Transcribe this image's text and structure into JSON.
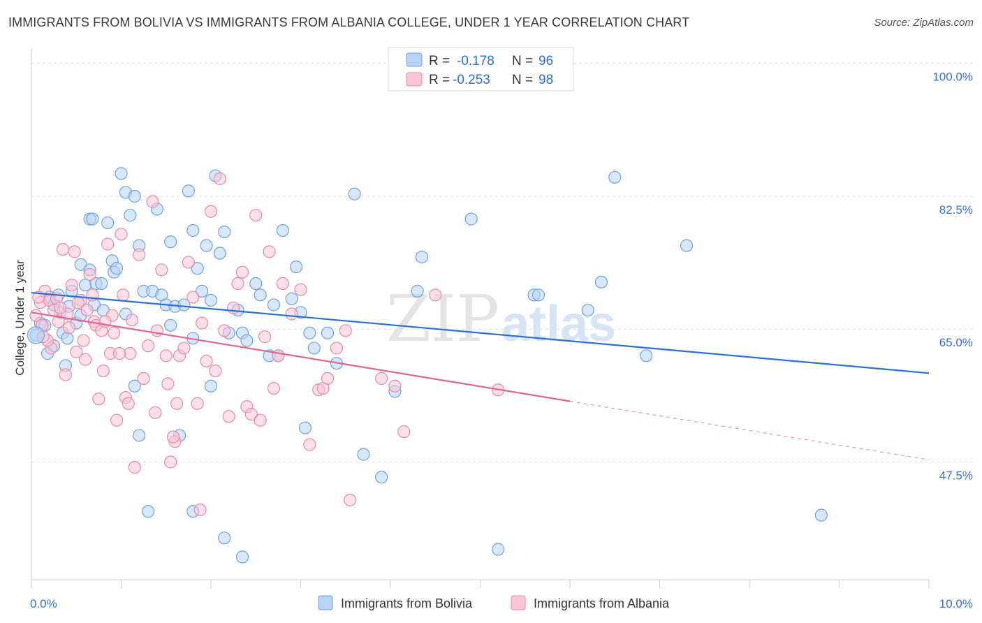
{
  "title": "IMMIGRANTS FROM BOLIVIA VS IMMIGRANTS FROM ALBANIA COLLEGE, UNDER 1 YEAR CORRELATION CHART",
  "source": "Source: ZipAtlas.com",
  "watermark": {
    "zip": "ZIP",
    "atlas": "atlas"
  },
  "colors": {
    "bolivia_fill": "#b8d3f5",
    "bolivia_stroke": "#6fa0e0",
    "bolivia_line": "#2a6fd4",
    "albania_fill": "#f8c6d5",
    "albania_stroke": "#e88aa8",
    "albania_line": "#e06690",
    "tick_label": "#3a6fd1",
    "grid": "#dddddd"
  },
  "legend": {
    "rows": [
      {
        "r_label": "R =",
        "r_value": "-0.178",
        "n_label": "N =",
        "n_value": "96"
      },
      {
        "r_label": "R =",
        "r_value": "-0.253",
        "n_label": "N =",
        "n_value": "98"
      }
    ]
  },
  "bottom_legend": {
    "items": [
      "Immigrants from Bolivia",
      "Immigrants from Albania"
    ]
  },
  "chart_data": {
    "type": "scatter",
    "ylabel": "College, Under 1 year",
    "xlim": [
      0,
      10
    ],
    "ylim": [
      32.0,
      102.0
    ],
    "y_ticks": [
      47.5,
      65.0,
      82.5,
      100.0
    ],
    "y_tick_labels": [
      "47.5%",
      "65.0%",
      "82.5%",
      "100.0%"
    ],
    "x_tick_labels": [
      "0.0%",
      "10.0%"
    ],
    "grid": true,
    "legend_position": "top-center",
    "series": [
      {
        "name": "Immigrants from Bolivia",
        "trend": {
          "x": [
            0.0,
            10.0
          ],
          "y": [
            69.8,
            59.2
          ]
        },
        "points": [
          [
            0.05,
            64.2
          ],
          [
            0.1,
            65.8
          ],
          [
            0.15,
            65.5
          ],
          [
            0.18,
            61.8
          ],
          [
            0.2,
            69.2
          ],
          [
            0.25,
            68.2
          ],
          [
            0.3,
            69.5
          ],
          [
            0.32,
            67.2
          ],
          [
            0.35,
            64.5
          ],
          [
            0.38,
            60.2
          ],
          [
            0.4,
            63.8
          ],
          [
            0.42,
            68.0
          ],
          [
            0.45,
            70.0
          ],
          [
            0.5,
            65.8
          ],
          [
            0.55,
            73.5
          ],
          [
            0.6,
            70.8
          ],
          [
            0.65,
            72.8
          ],
          [
            0.7,
            68.2
          ],
          [
            0.65,
            79.5
          ],
          [
            0.68,
            79.5
          ],
          [
            0.72,
            71.0
          ],
          [
            0.78,
            71.0
          ],
          [
            0.85,
            79.0
          ],
          [
            0.9,
            74.0
          ],
          [
            0.92,
            72.5
          ],
          [
            0.95,
            73.0
          ],
          [
            1.0,
            85.5
          ],
          [
            1.05,
            83.0
          ],
          [
            1.1,
            80.0
          ],
          [
            1.15,
            82.5
          ],
          [
            1.2,
            76.0
          ],
          [
            1.25,
            70.0
          ],
          [
            1.35,
            70.0
          ],
          [
            1.4,
            80.8
          ],
          [
            1.45,
            69.5
          ],
          [
            1.5,
            68.2
          ],
          [
            1.55,
            65.5
          ],
          [
            1.55,
            76.5
          ],
          [
            1.6,
            68.0
          ],
          [
            1.8,
            63.8
          ],
          [
            1.7,
            68.2
          ],
          [
            1.75,
            83.2
          ],
          [
            1.8,
            78.0
          ],
          [
            1.85,
            73.0
          ],
          [
            1.9,
            70.0
          ],
          [
            1.95,
            76.0
          ],
          [
            2.0,
            68.8
          ],
          [
            2.05,
            85.2
          ],
          [
            2.1,
            75.0
          ],
          [
            2.15,
            77.8
          ],
          [
            2.2,
            64.5
          ],
          [
            2.3,
            67.5
          ],
          [
            2.35,
            64.5
          ],
          [
            2.4,
            63.5
          ],
          [
            2.5,
            71.0
          ],
          [
            2.55,
            69.5
          ],
          [
            2.65,
            61.5
          ],
          [
            2.7,
            68.2
          ],
          [
            2.75,
            61.5
          ],
          [
            2.8,
            78.0
          ],
          [
            2.9,
            69.0
          ],
          [
            2.95,
            73.2
          ],
          [
            3.0,
            67.2
          ],
          [
            3.05,
            52.0
          ],
          [
            3.1,
            64.5
          ],
          [
            3.15,
            62.5
          ],
          [
            3.3,
            64.5
          ],
          [
            3.4,
            60.5
          ],
          [
            4.05,
            56.8
          ],
          [
            3.6,
            82.8
          ],
          [
            3.7,
            48.5
          ],
          [
            3.9,
            45.5
          ],
          [
            4.3,
            70.0
          ],
          [
            4.35,
            74.5
          ],
          [
            4.9,
            79.5
          ],
          [
            5.2,
            36.0
          ],
          [
            5.6,
            69.5
          ],
          [
            5.65,
            69.5
          ],
          [
            6.2,
            67.5
          ],
          [
            6.35,
            71.2
          ],
          [
            6.5,
            85.0
          ],
          [
            6.85,
            61.5
          ],
          [
            7.3,
            76.0
          ],
          [
            8.8,
            40.5
          ],
          [
            1.3,
            41.0
          ],
          [
            1.8,
            41.0
          ],
          [
            2.15,
            37.5
          ],
          [
            2.35,
            35.0
          ],
          [
            1.2,
            51.0
          ],
          [
            1.15,
            57.5
          ],
          [
            1.65,
            51.0
          ],
          [
            0.8,
            67.5
          ],
          [
            0.25,
            62.8
          ],
          [
            0.55,
            66.8
          ],
          [
            1.05,
            67.0
          ],
          [
            2.0,
            57.5
          ]
        ]
      },
      {
        "name": "Immigrants from Albania",
        "trend": {
          "x": [
            0.0,
            6.0
          ],
          "y": [
            67.2,
            55.5
          ]
        },
        "trend_dashed": {
          "x": [
            6.0,
            10.0
          ],
          "y": [
            55.5,
            47.8
          ]
        },
        "points": [
          [
            0.05,
            66.8
          ],
          [
            0.1,
            68.5
          ],
          [
            0.12,
            65.5
          ],
          [
            0.15,
            70.0
          ],
          [
            0.2,
            68.8
          ],
          [
            0.22,
            62.5
          ],
          [
            0.25,
            67.5
          ],
          [
            0.28,
            69.0
          ],
          [
            0.3,
            66.0
          ],
          [
            0.35,
            75.5
          ],
          [
            0.4,
            67.0
          ],
          [
            0.45,
            70.8
          ],
          [
            0.48,
            75.2
          ],
          [
            0.5,
            62.0
          ],
          [
            0.55,
            68.8
          ],
          [
            0.6,
            61.0
          ],
          [
            0.65,
            72.2
          ],
          [
            0.7,
            66.0
          ],
          [
            0.72,
            65.5
          ],
          [
            0.75,
            55.8
          ],
          [
            0.8,
            59.5
          ],
          [
            0.85,
            76.2
          ],
          [
            0.88,
            61.8
          ],
          [
            0.9,
            66.8
          ],
          [
            0.92,
            64.5
          ],
          [
            0.95,
            53.0
          ],
          [
            1.0,
            77.5
          ],
          [
            1.05,
            56.0
          ],
          [
            1.1,
            61.8
          ],
          [
            1.12,
            66.2
          ],
          [
            1.15,
            46.8
          ],
          [
            1.2,
            74.8
          ],
          [
            1.25,
            58.5
          ],
          [
            1.3,
            62.8
          ],
          [
            1.35,
            81.8
          ],
          [
            1.4,
            64.8
          ],
          [
            1.45,
            72.8
          ],
          [
            1.5,
            61.5
          ],
          [
            1.52,
            57.8
          ],
          [
            1.55,
            47.5
          ],
          [
            1.6,
            50.2
          ],
          [
            1.62,
            55.2
          ],
          [
            1.65,
            61.5
          ],
          [
            1.7,
            62.5
          ],
          [
            1.75,
            73.8
          ],
          [
            1.8,
            69.2
          ],
          [
            1.85,
            55.2
          ],
          [
            1.9,
            65.8
          ],
          [
            1.95,
            60.8
          ],
          [
            2.0,
            80.5
          ],
          [
            2.05,
            59.5
          ],
          [
            2.1,
            84.8
          ],
          [
            2.15,
            64.8
          ],
          [
            2.2,
            53.5
          ],
          [
            2.25,
            67.8
          ],
          [
            2.3,
            71.0
          ],
          [
            2.35,
            72.5
          ],
          [
            2.4,
            54.8
          ],
          [
            2.45,
            53.8
          ],
          [
            2.5,
            80.0
          ],
          [
            2.55,
            53.0
          ],
          [
            2.6,
            64.0
          ],
          [
            2.65,
            75.2
          ],
          [
            2.7,
            57.2
          ],
          [
            2.75,
            61.5
          ],
          [
            2.8,
            71.0
          ],
          [
            2.9,
            67.0
          ],
          [
            3.0,
            70.2
          ],
          [
            3.1,
            49.8
          ],
          [
            3.2,
            57.0
          ],
          [
            3.25,
            57.2
          ],
          [
            3.3,
            58.5
          ],
          [
            3.4,
            62.5
          ],
          [
            3.5,
            64.8
          ],
          [
            3.55,
            42.5
          ],
          [
            3.9,
            58.5
          ],
          [
            4.05,
            57.5
          ],
          [
            4.15,
            51.5
          ],
          [
            4.5,
            69.5
          ],
          [
            5.2,
            57.0
          ],
          [
            0.18,
            63.5
          ],
          [
            0.32,
            67.8
          ],
          [
            0.42,
            65.2
          ],
          [
            0.52,
            68.5
          ],
          [
            0.62,
            67.5
          ],
          [
            0.78,
            64.8
          ],
          [
            0.98,
            61.8
          ],
          [
            1.08,
            55.2
          ],
          [
            1.38,
            54.0
          ],
          [
            1.58,
            50.8
          ],
          [
            1.88,
            41.2
          ],
          [
            0.08,
            69.2
          ],
          [
            0.13,
            64.0
          ],
          [
            0.38,
            59.0
          ],
          [
            0.58,
            63.5
          ],
          [
            0.68,
            69.5
          ],
          [
            0.82,
            66.0
          ],
          [
            1.02,
            69.5
          ]
        ]
      }
    ]
  }
}
